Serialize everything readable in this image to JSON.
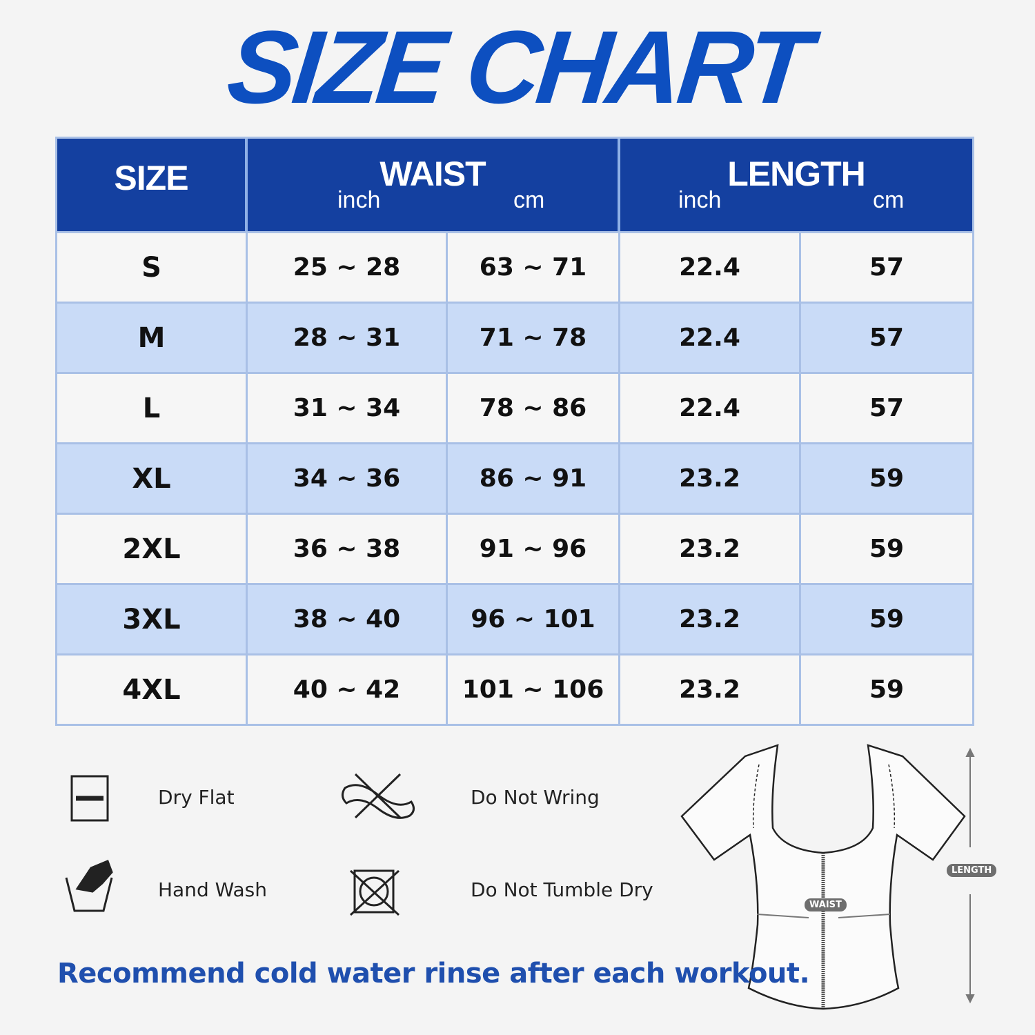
{
  "title": "SIZE CHART",
  "colors": {
    "header": "#1440a0",
    "title": "#0d4fc0",
    "row_alt": "#c9dbf7",
    "border": "#a9c0e6",
    "note": "#1f4fae"
  },
  "table": {
    "headers": {
      "size": "SIZE",
      "waist": {
        "label": "WAIST",
        "inch": "inch",
        "cm": "cm"
      },
      "length": {
        "label": "LENGTH",
        "inch": "inch",
        "cm": "cm"
      }
    },
    "rows": [
      {
        "size": "S",
        "waist_inch": "25 ~ 28",
        "waist_cm": "63 ~ 71",
        "length_inch": "22.4",
        "length_cm": "57"
      },
      {
        "size": "M",
        "waist_inch": "28 ~ 31",
        "waist_cm": "71 ~ 78",
        "length_inch": "22.4",
        "length_cm": "57"
      },
      {
        "size": "L",
        "waist_inch": "31 ~ 34",
        "waist_cm": "78 ~ 86",
        "length_inch": "22.4",
        "length_cm": "57"
      },
      {
        "size": "XL",
        "waist_inch": "34 ~ 36",
        "waist_cm": "86 ~ 91",
        "length_inch": "23.2",
        "length_cm": "59"
      },
      {
        "size": "2XL",
        "waist_inch": "36 ~ 38",
        "waist_cm": "91 ~ 96",
        "length_inch": "23.2",
        "length_cm": "59"
      },
      {
        "size": "3XL",
        "waist_inch": "38 ~ 40",
        "waist_cm": "96 ~ 101",
        "length_inch": "23.2",
        "length_cm": "59"
      },
      {
        "size": "4XL",
        "waist_inch": "40 ~ 42",
        "waist_cm": "101 ~ 106",
        "length_inch": "23.2",
        "length_cm": "59"
      }
    ]
  },
  "care": [
    {
      "icon": "dry-flat-icon",
      "label": "Dry Flat"
    },
    {
      "icon": "do-not-wring-icon",
      "label": "Do Not Wring"
    },
    {
      "icon": "hand-wash-icon",
      "label": "Hand Wash"
    },
    {
      "icon": "do-not-tumble-dry-icon",
      "label": "Do Not Tumble Dry"
    }
  ],
  "note": "Recommend cold water rinse after each workout.",
  "diagram": {
    "waist_label": "WAIST",
    "length_label": "LENGTH"
  }
}
